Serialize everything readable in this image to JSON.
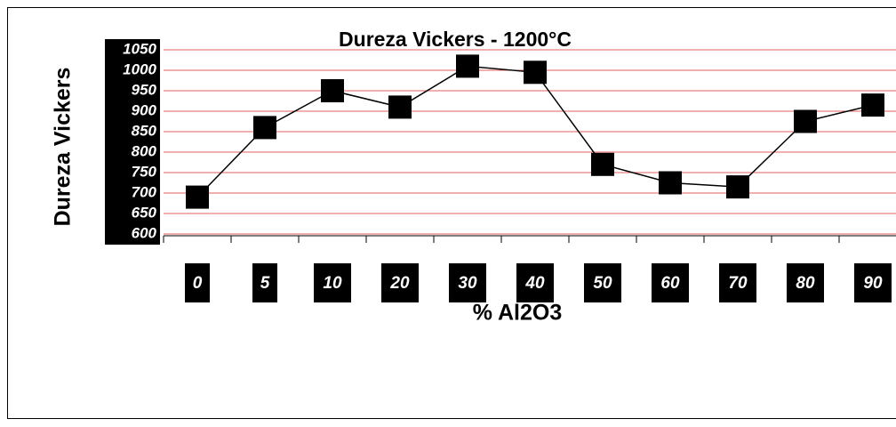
{
  "chart_data": {
    "type": "line",
    "title": "Dureza Vickers - 1200°C",
    "x_label": "% Al2O3",
    "y_label": "Dureza Vickers",
    "categories": [
      "0",
      "5",
      "10",
      "20",
      "30",
      "40",
      "50",
      "60",
      "70",
      "80",
      "90"
    ],
    "series": [
      {
        "name": "Dureza Vickers",
        "color": "#000000",
        "values": [
          690,
          860,
          950,
          910,
          1010,
          995,
          770,
          725,
          715,
          875,
          915
        ]
      }
    ],
    "ylim": [
      600,
      1050
    ],
    "yticks": [
      600,
      650,
      700,
      750,
      800,
      850,
      900,
      950,
      1000,
      1050
    ],
    "grid": true,
    "grid_color": "#e06060"
  }
}
